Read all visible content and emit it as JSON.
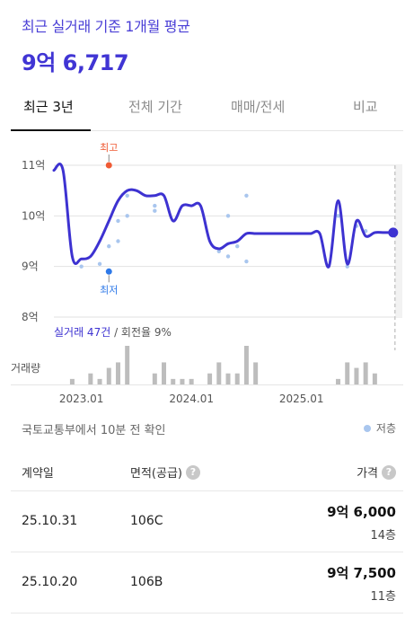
{
  "header": {
    "title": "최근 실거래 기준 1개월 평균",
    "price": "9억 6,717"
  },
  "tabs": [
    {
      "label": "최근 3년",
      "active": true
    },
    {
      "label": "전체 기간",
      "active": false
    },
    {
      "label": "매매/전세",
      "active": false
    },
    {
      "label": "비교",
      "active": false
    }
  ],
  "chart": {
    "y_ticks": [
      "11억",
      "10억",
      "9억",
      "8억"
    ],
    "x_ticks": [
      "2023.01",
      "2024.01",
      "2025.01"
    ],
    "high_label": "최고",
    "low_label": "최저",
    "summary_trades": "실거래 47건",
    "summary_turnover": " / 회전율 9%",
    "volume_label": "거래량"
  },
  "chart_data": {
    "type": "line",
    "ylim": [
      8,
      11
    ],
    "yunit": "억",
    "xlim": [
      "2022-10",
      "2025-12"
    ],
    "series": [
      {
        "name": "",
        "x": [
          "2022-10",
          "2022-11",
          "2022-12",
          "2023-01",
          "2023-02",
          "2023-03",
          "2023-04",
          "2023-05",
          "2023-06",
          "2023-07",
          "2023-08",
          "2023-09",
          "2023-10",
          "2023-11",
          "2023-12",
          "2024-01",
          "2024-02",
          "2024-03",
          "2024-04",
          "2024-05",
          "2024-06",
          "2024-07",
          "2024-08",
          "2024-09",
          "2024-10",
          "2024-11",
          "2024-12",
          "2025-01",
          "2025-02",
          "2025-03",
          "2025-04",
          "2025-05",
          "2025-06",
          "2025-07",
          "2025-08",
          "2025-09",
          "2025-10",
          "2025-11"
        ],
        "y": [
          10.9,
          10.9,
          9.2,
          9.15,
          9.2,
          9.5,
          9.9,
          10.3,
          10.5,
          10.5,
          10.4,
          10.4,
          10.4,
          9.9,
          10.2,
          10.2,
          10.2,
          9.5,
          9.35,
          9.45,
          9.5,
          9.65,
          9.65,
          9.65,
          9.65,
          9.65,
          9.65,
          9.65,
          9.65,
          9.65,
          9.0,
          10.3,
          9.05,
          9.9,
          9.6,
          9.67,
          9.67,
          9.67
        ]
      }
    ],
    "scatter": [
      {
        "x": "2023-01",
        "y": 9.0
      },
      {
        "x": "2023-03",
        "y": 9.05
      },
      {
        "x": "2023-04",
        "y": 9.4
      },
      {
        "x": "2023-05",
        "y": 9.5
      },
      {
        "x": "2023-05",
        "y": 9.9
      },
      {
        "x": "2023-06",
        "y": 10.4
      },
      {
        "x": "2023-06",
        "y": 10.0
      },
      {
        "x": "2023-09",
        "y": 10.1
      },
      {
        "x": "2023-09",
        "y": 10.2
      },
      {
        "x": "2024-04",
        "y": 9.3
      },
      {
        "x": "2024-05",
        "y": 9.2
      },
      {
        "x": "2024-05",
        "y": 10.0
      },
      {
        "x": "2024-06",
        "y": 9.4
      },
      {
        "x": "2024-07",
        "y": 9.1
      },
      {
        "x": "2024-07",
        "y": 10.4
      },
      {
        "x": "2025-05",
        "y": 10.0
      },
      {
        "x": "2025-06",
        "y": 9.0
      },
      {
        "x": "2025-06",
        "y": 9.1
      },
      {
        "x": "2025-07",
        "y": 9.8
      },
      {
        "x": "2025-08",
        "y": 9.7
      }
    ],
    "high": {
      "x": "2023-04",
      "y": 11.0
    },
    "low": {
      "x": "2023-04",
      "y": 8.9
    },
    "volume": [
      {
        "x": "2022-12",
        "v": 1
      },
      {
        "x": "2023-02",
        "v": 2
      },
      {
        "x": "2023-03",
        "v": 1
      },
      {
        "x": "2023-04",
        "v": 3
      },
      {
        "x": "2023-05",
        "v": 4
      },
      {
        "x": "2023-06",
        "v": 7
      },
      {
        "x": "2023-09",
        "v": 2
      },
      {
        "x": "2023-10",
        "v": 4
      },
      {
        "x": "2023-11",
        "v": 1
      },
      {
        "x": "2023-12",
        "v": 1
      },
      {
        "x": "2024-01",
        "v": 1
      },
      {
        "x": "2024-03",
        "v": 2
      },
      {
        "x": "2024-04",
        "v": 4
      },
      {
        "x": "2024-05",
        "v": 2
      },
      {
        "x": "2024-06",
        "v": 2
      },
      {
        "x": "2024-07",
        "v": 7
      },
      {
        "x": "2024-08",
        "v": 4
      },
      {
        "x": "2025-05",
        "v": 1
      },
      {
        "x": "2025-06",
        "v": 4
      },
      {
        "x": "2025-07",
        "v": 3
      },
      {
        "x": "2025-08",
        "v": 4
      },
      {
        "x": "2025-09",
        "v": 2
      }
    ],
    "colors": {
      "line": "#3d32d1",
      "scatter": "#a9c6ee",
      "high": "#ef5a34",
      "low": "#2e79e8",
      "volume": "#bdbdbd",
      "future": "#f2f2f2"
    }
  },
  "notice": {
    "text": "국토교통부에서 10분 전 확인",
    "legend_low_floor": "저층"
  },
  "table": {
    "headers": {
      "date": "계약일",
      "area": "면적(공급)",
      "price": "가격",
      "help": "?"
    },
    "rows": [
      {
        "date": "25.10.31",
        "area": "106C",
        "price": "9억 6,000",
        "floor": "14층"
      },
      {
        "date": "25.10.20",
        "area": "106B",
        "price": "9억 7,500",
        "floor": "11층"
      }
    ]
  }
}
